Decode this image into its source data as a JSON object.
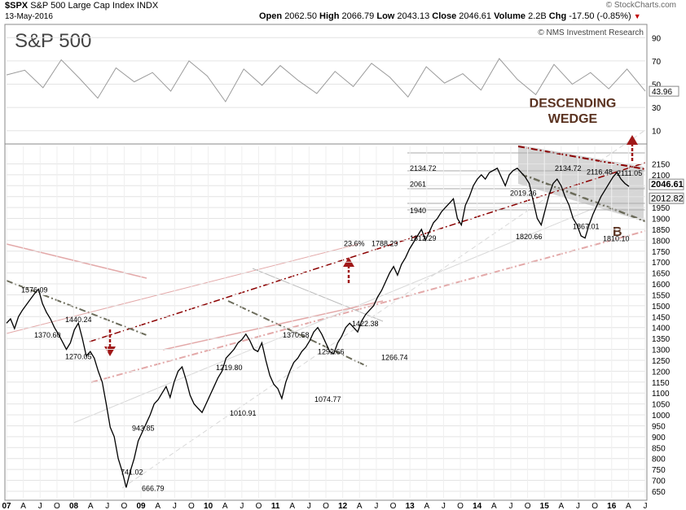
{
  "header": {
    "ticker": "$SPX",
    "name": "S&P 500 Large Cap Index",
    "exchange": "INDX",
    "date": "13-May-2016",
    "open_label": "Open",
    "open": "2062.50",
    "high_label": "High",
    "high": "2066.79",
    "low_label": "Low",
    "low": "2043.13",
    "close_label": "Close",
    "close": "2046.61",
    "volume_label": "Volume",
    "volume": "2.2B",
    "chg_label": "Chg",
    "chg": "-17.50 (-0.85%)",
    "brand": "© StockCharts.com",
    "chart_title": "S&P 500",
    "credit": "© NMS Investment Research"
  },
  "colors": {
    "price": "#000000",
    "rsi": "#9a9a9a",
    "trend_dark": "#8b0000",
    "trend_light": "#e3a9a9",
    "support_line": "#6b6b5a",
    "wedge_fill": "#c8c8c8",
    "annotation": "#5a3220",
    "grid": "#e4e4e4"
  },
  "annotations": {
    "wedge_line1": "DESCENDING",
    "wedge_line2": "WEDGE",
    "wave_b": "B"
  },
  "chart_data": [
    {
      "type": "line",
      "title": "",
      "ylabel": "",
      "ylim": [
        0,
        100
      ],
      "y_ticks": [
        "90",
        "70",
        "50",
        "30",
        "10"
      ],
      "last_value": "43.96",
      "series": [
        {
          "values": [
            58,
            62,
            47,
            71,
            55,
            38,
            64,
            52,
            60,
            44,
            70,
            57,
            35,
            63,
            49,
            66,
            53,
            42,
            61,
            48,
            68,
            56,
            39,
            65,
            51,
            59,
            45,
            72,
            54,
            41,
            67,
            50,
            60,
            46,
            63,
            43.96
          ]
        }
      ]
    },
    {
      "type": "line",
      "title": "",
      "ylabel": "",
      "ylim": [
        620,
        2230
      ],
      "y_ticks": [
        "2150",
        "2100",
        "2050",
        "2000",
        "1950",
        "1900",
        "1850",
        "1800",
        "1750",
        "1700",
        "1650",
        "1600",
        "1550",
        "1500",
        "1450",
        "1400",
        "1350",
        "1300",
        "1250",
        "1200",
        "1150",
        "1100",
        "1050",
        "1000",
        "950",
        "900",
        "850",
        "800",
        "750",
        "700",
        "650"
      ],
      "x_ticks": [
        "07",
        "A",
        "J",
        "O",
        "08",
        "A",
        "J",
        "O",
        "09",
        "A",
        "J",
        "O",
        "10",
        "A",
        "J",
        "O",
        "11",
        "A",
        "J",
        "O",
        "12",
        "A",
        "J",
        "O",
        "13",
        "A",
        "J",
        "O",
        "14",
        "A",
        "J",
        "O",
        "15",
        "A",
        "J",
        "O",
        "16",
        "A",
        "J"
      ],
      "series": [
        {
          "values": [
            1420,
            1440,
            1395,
            1450,
            1480,
            1505,
            1530,
            1555,
            1576,
            1510,
            1470,
            1440,
            1400,
            1370,
            1335,
            1300,
            1330,
            1390,
            1420,
            1350,
            1270,
            1290,
            1260,
            1200,
            1150,
            1050,
            943,
            900,
            800,
            741,
            667,
            740,
            800,
            880,
            920,
            960,
            1000,
            1050,
            1070,
            1100,
            1130,
            1080,
            1150,
            1200,
            1220,
            1160,
            1090,
            1050,
            1030,
            1011,
            1050,
            1090,
            1130,
            1170,
            1200,
            1260,
            1280,
            1300,
            1330,
            1345,
            1370,
            1340,
            1300,
            1290,
            1330,
            1250,
            1180,
            1140,
            1120,
            1075,
            1150,
            1200,
            1240,
            1260,
            1290,
            1310,
            1340,
            1380,
            1400,
            1370,
            1330,
            1290,
            1280,
            1330,
            1360,
            1400,
            1420,
            1400,
            1380,
            1430,
            1460,
            1480,
            1500,
            1540,
            1570,
            1610,
            1650,
            1680,
            1640,
            1690,
            1720,
            1760,
            1790,
            1820,
            1850,
            1800,
            1840,
            1880,
            1900,
            1930,
            1950,
            1970,
            1990,
            1900,
            1870,
            1960,
            2000,
            2050,
            2080,
            2100,
            2080,
            2110,
            2120,
            2130,
            2090,
            2050,
            2100,
            2120,
            2130,
            2110,
            2090,
            2060,
            1980,
            1900,
            1870,
            1940,
            2010,
            2060,
            2080,
            2050,
            2000,
            1960,
            1900,
            1870,
            1820,
            1810,
            1870,
            1920,
            1960,
            2000,
            2030,
            2060,
            2090,
            2111,
            2080,
            2060,
            2046.61
          ]
        }
      ],
      "level_labels": [
        {
          "text": "1576.09",
          "y": 1576
        },
        {
          "text": "1440.24",
          "y": 1440
        },
        {
          "text": "1370.60",
          "y": 1370
        },
        {
          "text": "1270.05",
          "y": 1270
        },
        {
          "text": "943.85",
          "y": 943
        },
        {
          "text": "741.02",
          "y": 741
        },
        {
          "text": "666.79",
          "y": 667
        },
        {
          "text": "1219.80",
          "y": 1220
        },
        {
          "text": "1010.91",
          "y": 1011
        },
        {
          "text": "1370.58",
          "y": 1370
        },
        {
          "text": "1292.66",
          "y": 1292
        },
        {
          "text": "1074.77",
          "y": 1075
        },
        {
          "text": "1266.74",
          "y": 1266
        },
        {
          "text": "1422.38",
          "y": 1422
        },
        {
          "text": "2134.72",
          "y": 2134
        },
        {
          "text": "2061",
          "y": 2061
        },
        {
          "text": "1940",
          "y": 1940
        },
        {
          "text": "1812.29",
          "y": 1812
        },
        {
          "text": "23.6%",
          "y": 1788
        },
        {
          "text": "1788.29",
          "y": 1788
        },
        {
          "text": "2019.26",
          "y": 2019
        },
        {
          "text": "2134.72",
          "y": 2134
        },
        {
          "text": "2116.48",
          "y": 2116
        },
        {
          "text": "2111.05",
          "y": 2111
        },
        {
          "text": "1820.66",
          "y": 1820
        },
        {
          "text": "1867.01",
          "y": 1867
        },
        {
          "text": "1810.10",
          "y": 1810
        }
      ],
      "right_labels": [
        {
          "text": "2046.61",
          "y": 2046.61
        },
        {
          "text": "2012.82",
          "y": 2012.82
        }
      ]
    }
  ]
}
